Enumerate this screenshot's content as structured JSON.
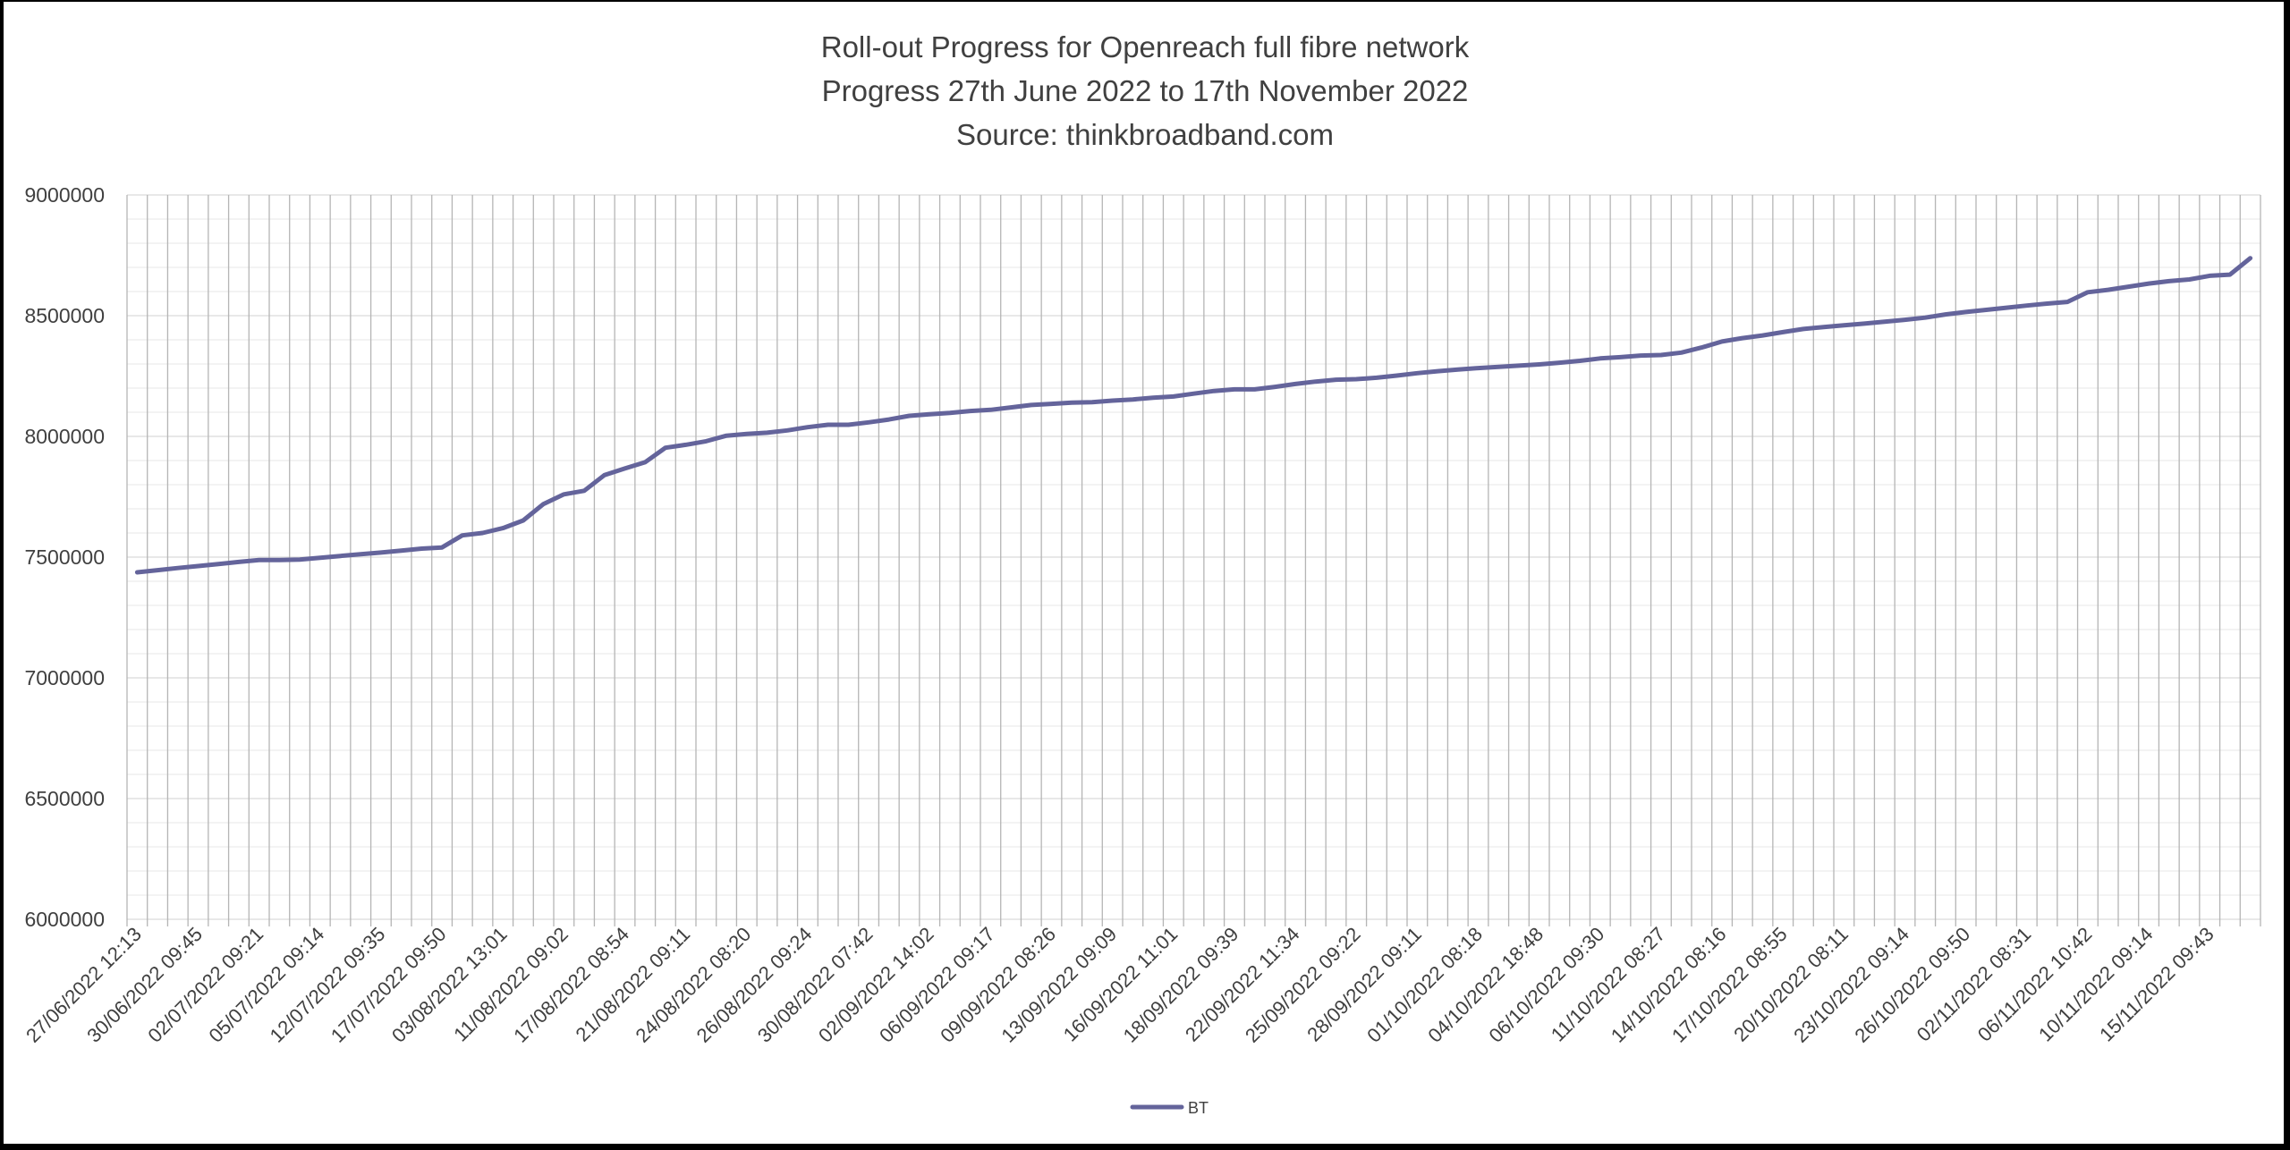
{
  "chart_data": {
    "type": "line",
    "title": "Roll-out Progress for Openreach full fibre network",
    "subtitle": "Progress 27th June 2022 to 17th November 2022",
    "source": "Source: thinkbroadband.com",
    "xlabel": "",
    "ylabel": "",
    "ylim": [
      6000000,
      9000000
    ],
    "yticks": [
      "9000000",
      "8500000",
      "8000000",
      "7500000",
      "7000000",
      "6500000",
      "6000000"
    ],
    "ytick_values": [
      9000000,
      8500000,
      8000000,
      7500000,
      7000000,
      6500000,
      6000000
    ],
    "grid": true,
    "legend_position": "bottom",
    "category_count": 105,
    "label_every": 3,
    "x_tick_labels": [
      "27/06/2022 12:13",
      "30/06/2022 09:45",
      "02/07/2022 09:21",
      "05/07/2022 09:14",
      "12/07/2022 09:35",
      "17/07/2022 09:50",
      "03/08/2022 13:01",
      "11/08/2022 09:02",
      "17/08/2022 08:54",
      "21/08/2022 09:11",
      "24/08/2022 08:20",
      "26/08/2022 09:24",
      "30/08/2022 07:42",
      "02/09/2022 14:02",
      "06/09/2022 09:17",
      "09/09/2022 08:26",
      "13/09/2022 09:09",
      "16/09/2022 11:01",
      "18/09/2022 09:39",
      "22/09/2022 11:34",
      "25/09/2022 09:22",
      "28/09/2022 09:11",
      "01/10/2022 08:18",
      "04/10/2022 18:48",
      "06/10/2022 09:30",
      "11/10/2022 08:27",
      "14/10/2022 08:16",
      "17/10/2022 08:55",
      "20/10/2022 08:11",
      "23/10/2022 09:14",
      "26/10/2022 09:50",
      "02/11/2022 08:31",
      "06/11/2022 10:42",
      "10/11/2022 09:14",
      "15/11/2022 09:43"
    ],
    "series": [
      {
        "name": "BT",
        "color": "#64649B",
        "values": [
          7437000,
          7446000,
          7455000,
          7463000,
          7471000,
          7480000,
          7488000,
          7488000,
          7490000,
          7497000,
          7505000,
          7512000,
          7519000,
          7527000,
          7535000,
          7540000,
          7590000,
          7600000,
          7620000,
          7652000,
          7720000,
          7760000,
          7775000,
          7840000,
          7867000,
          7893000,
          7953000,
          7965000,
          7980000,
          8003000,
          8010000,
          8015000,
          8025000,
          8038000,
          8048000,
          8048000,
          8058000,
          8070000,
          8085000,
          8092000,
          8097000,
          8105000,
          8110000,
          8120000,
          8130000,
          8135000,
          8140000,
          8142000,
          8148000,
          8153000,
          8160000,
          8165000,
          8177000,
          8188000,
          8195000,
          8195000,
          8205000,
          8217000,
          8227000,
          8235000,
          8237000,
          8243000,
          8252000,
          8262000,
          8270000,
          8277000,
          8283000,
          8288000,
          8293000,
          8298000,
          8305000,
          8313000,
          8323000,
          8328000,
          8335000,
          8337000,
          8347000,
          8368000,
          8393000,
          8407000,
          8418000,
          8432000,
          8445000,
          8453000,
          8460000,
          8467000,
          8475000,
          8483000,
          8492000,
          8505000,
          8515000,
          8524000,
          8533000,
          8542000,
          8550000,
          8557000,
          8597000,
          8607000,
          8620000,
          8633000,
          8643000,
          8650000,
          8665000,
          8670000,
          8738000
        ]
      }
    ]
  },
  "legend": {
    "items": [
      {
        "label": "BT",
        "color": "#64649B"
      }
    ]
  }
}
